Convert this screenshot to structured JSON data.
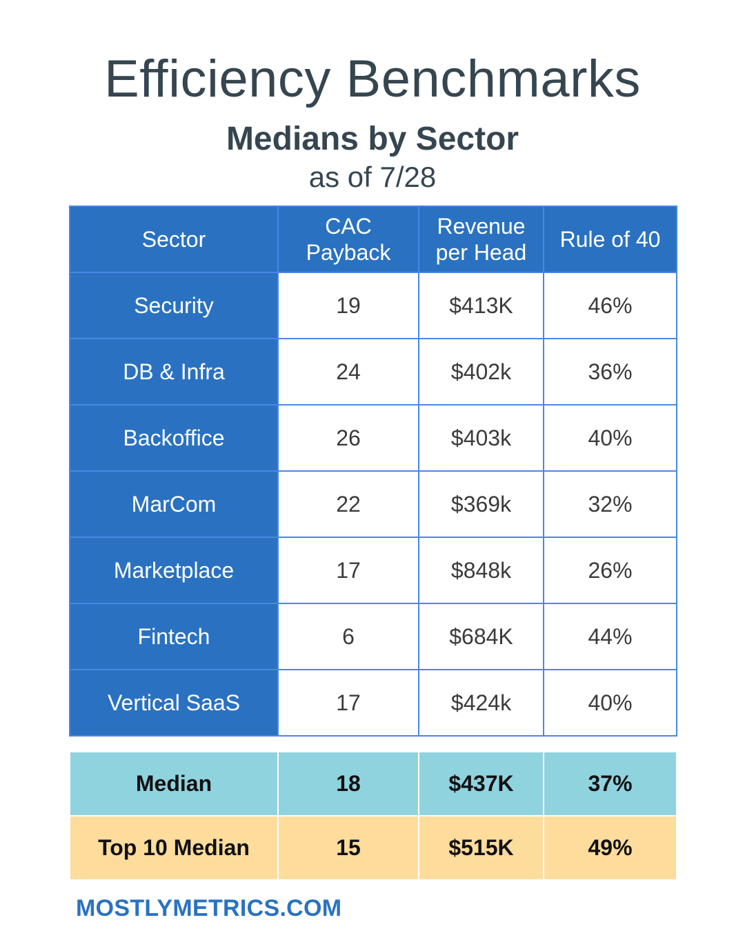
{
  "header": {
    "title": "Efficiency Benchmarks",
    "subtitle": "Medians by Sector",
    "as_of": "as of 7/28"
  },
  "chart_data": {
    "type": "table",
    "columns": [
      "Sector",
      "CAC\nPayback",
      "Revenue\nper Head",
      "Rule of 40"
    ],
    "rows": [
      [
        "Security",
        "19",
        "$413K",
        "46%"
      ],
      [
        "DB & Infra",
        "24",
        "$402k",
        "36%"
      ],
      [
        "Backoffice",
        "26",
        "$403k",
        "40%"
      ],
      [
        "MarCom",
        "22",
        "$369k",
        "32%"
      ],
      [
        "Marketplace",
        "17",
        "$848k",
        "26%"
      ],
      [
        "Fintech",
        "6",
        "$684K",
        "44%"
      ],
      [
        "Vertical SaaS",
        "17",
        "$424k",
        "40%"
      ]
    ],
    "summary_rows": [
      {
        "label": "Median",
        "values": [
          "18",
          "$437K",
          "37%"
        ],
        "color": "#8fd3df"
      },
      {
        "label": "Top 10 Median",
        "values": [
          "15",
          "$515K",
          "49%"
        ],
        "color": "#fddc9c"
      }
    ]
  },
  "colors": {
    "header_blue": "#2a72c1",
    "border_blue": "#4a86e8",
    "median_teal": "#8fd3df",
    "top10_yellow": "#fddc9c",
    "title_gray": "#364650"
  },
  "footer": {
    "brand": "MOSTLYMETRICS.COM"
  }
}
